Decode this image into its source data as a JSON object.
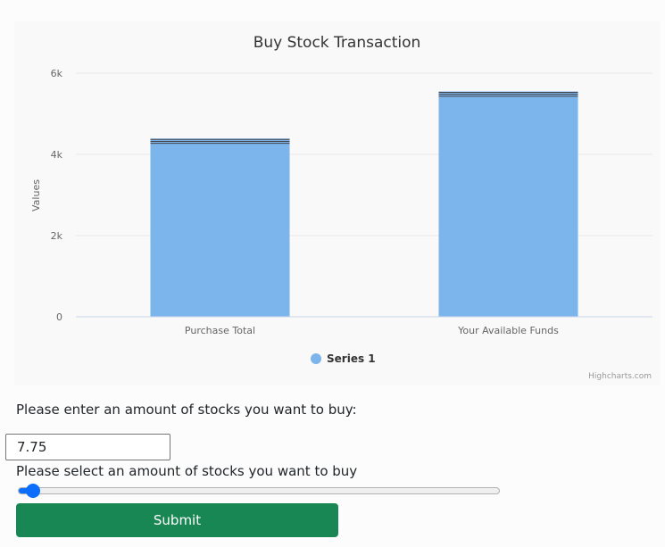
{
  "chart_data": {
    "type": "bar",
    "title": "Buy Stock Transaction",
    "xlabel": "",
    "ylabel": "Values",
    "categories": [
      "Purchase Total",
      "Your Available Funds"
    ],
    "series": [
      {
        "name": "Series 1",
        "values": [
          4390,
          5550
        ],
        "color": "#7cb5ec"
      }
    ],
    "ylim": [
      0,
      6000
    ],
    "yticks": [
      0,
      2000,
      4000,
      6000
    ],
    "ytick_labels": [
      "0",
      "2k",
      "4k",
      "6k"
    ],
    "grid": true,
    "legend_position": "bottom-center",
    "credits": "Highcharts.com"
  },
  "form": {
    "amount_label": "Please enter an amount of stocks you want to buy:",
    "amount_value": "7.75",
    "slider_label": "Please select an amount of stocks you want to buy",
    "slider_value_fraction": 0.015,
    "submit_label": "Submit"
  },
  "colors": {
    "bar": "#7cb5ec",
    "submit_button": "#198754",
    "slider_accent": "#0d6efd"
  }
}
